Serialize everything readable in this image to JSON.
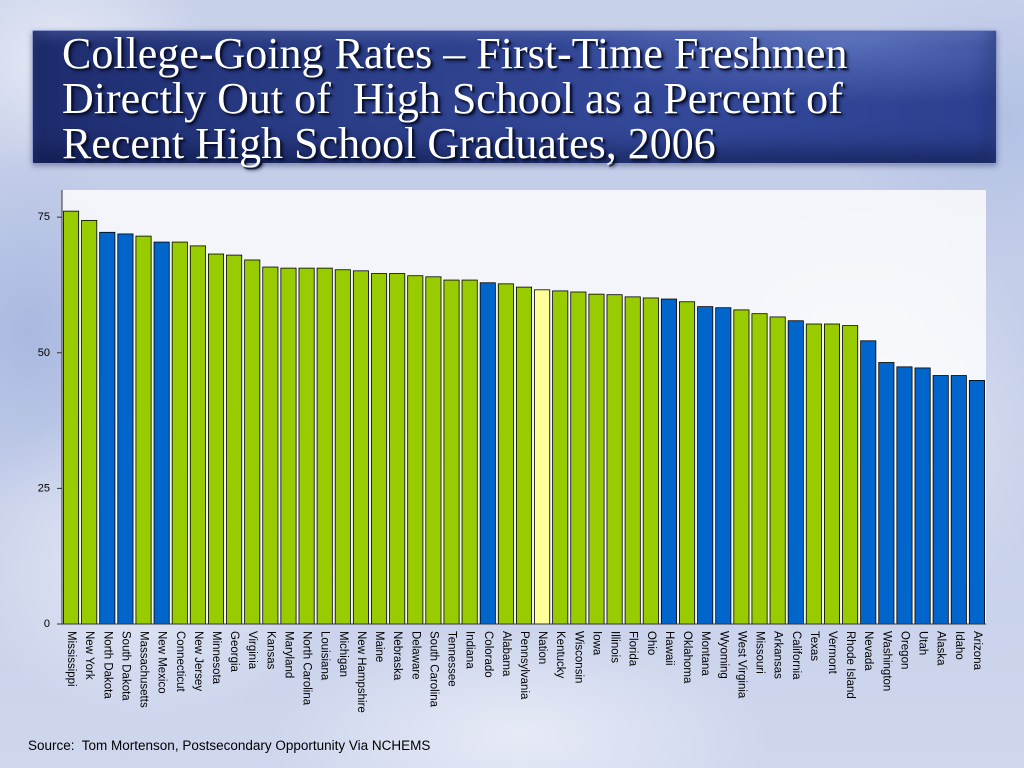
{
  "slide": {
    "source": "Source:  Tom Mortenson, Postsecondary Opportunity Via NCHEMS"
  },
  "colors": {
    "title_text": "#ffffff",
    "bar_green": "#99cc00",
    "bar_blue": "#0066cc",
    "bar_nation": "#ffff99",
    "bar_outline": "#000000",
    "axis": "#333333"
  },
  "chart_data": {
    "type": "bar",
    "title": "College-Going Rates – First-Time Freshmen\nDirectly Out of  High School as a Percent of\nRecent High School Graduates, 2006",
    "ylim": [
      0,
      80
    ],
    "yticks": [
      0,
      25,
      50,
      75
    ],
    "grid": false,
    "categories": [
      "Mississippi",
      "New York",
      "North Dakota",
      "South Dakota",
      "Massachusetts",
      "New Mexico",
      "Connecticut",
      "New Jersey",
      "Minnesota",
      "Georgia",
      "Virginia",
      "Kansas",
      "Maryland",
      "North Carolina",
      "Louisiana",
      "Michigan",
      "New Hampshire",
      "Maine",
      "Nebraska",
      "Delaware",
      "South Carolina",
      "Tennessee",
      "Indiana",
      "Colorado",
      "Alabama",
      "Pennsylvania",
      "Nation",
      "Kentucky",
      "Wisconsin",
      "Iowa",
      "Illinois",
      "Florida",
      "Ohio",
      "Hawaii",
      "Oklahoma",
      "Montana",
      "Wyoming",
      "West Virginia",
      "Missouri",
      "Arkansas",
      "California",
      "Texas",
      "Vermont",
      "Rhode Island",
      "Nevada",
      "Washington",
      "Oregon",
      "Utah",
      "Alaska",
      "Idaho",
      "Arizona"
    ],
    "values": [
      76.1,
      74.4,
      72.2,
      71.9,
      71.5,
      70.4,
      70.4,
      69.7,
      68.2,
      68.0,
      67.1,
      65.8,
      65.6,
      65.6,
      65.6,
      65.3,
      65.1,
      64.6,
      64.6,
      64.2,
      64.0,
      63.4,
      63.4,
      62.9,
      62.7,
      62.1,
      61.6,
      61.4,
      61.2,
      60.8,
      60.7,
      60.3,
      60.1,
      59.9,
      59.4,
      58.5,
      58.3,
      57.9,
      57.2,
      56.6,
      55.9,
      55.3,
      55.3,
      55.0,
      52.2,
      48.2,
      47.4,
      47.2,
      45.8,
      45.8,
      44.9
    ],
    "bar_colors": [
      "#99cc00",
      "#99cc00",
      "#0066cc",
      "#0066cc",
      "#99cc00",
      "#0066cc",
      "#99cc00",
      "#99cc00",
      "#99cc00",
      "#99cc00",
      "#99cc00",
      "#99cc00",
      "#99cc00",
      "#99cc00",
      "#99cc00",
      "#99cc00",
      "#99cc00",
      "#99cc00",
      "#99cc00",
      "#99cc00",
      "#99cc00",
      "#99cc00",
      "#99cc00",
      "#0066cc",
      "#99cc00",
      "#99cc00",
      "#ffff99",
      "#99cc00",
      "#99cc00",
      "#99cc00",
      "#99cc00",
      "#99cc00",
      "#99cc00",
      "#0066cc",
      "#99cc00",
      "#0066cc",
      "#0066cc",
      "#99cc00",
      "#99cc00",
      "#99cc00",
      "#0066cc",
      "#99cc00",
      "#99cc00",
      "#99cc00",
      "#0066cc",
      "#0066cc",
      "#0066cc",
      "#0066cc",
      "#0066cc",
      "#0066cc",
      "#0066cc"
    ]
  }
}
